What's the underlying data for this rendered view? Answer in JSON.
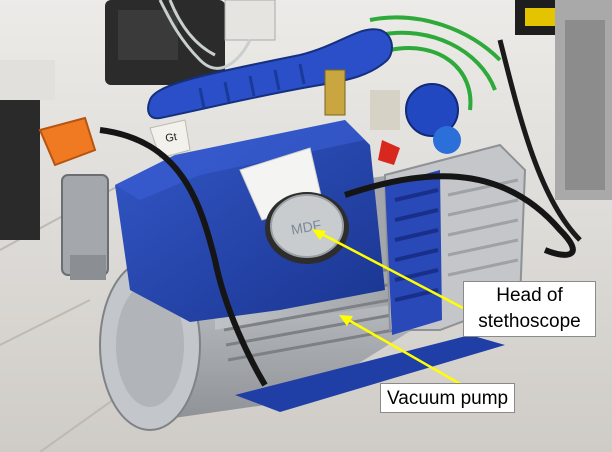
{
  "annotations": {
    "head_label_line1": "Head of",
    "head_label_line2": "stethoscope",
    "pump_label": "Vacuum pump",
    "arrow_color": "#ffff00"
  },
  "photo": {
    "pump_label_text": "Gt",
    "stethoscope_text": "MDF",
    "pump_body_color": "#2342a8",
    "housing_color": "#b9bcc0",
    "handle_color": "#2a4fc8",
    "connector_color": "#f07a22"
  }
}
